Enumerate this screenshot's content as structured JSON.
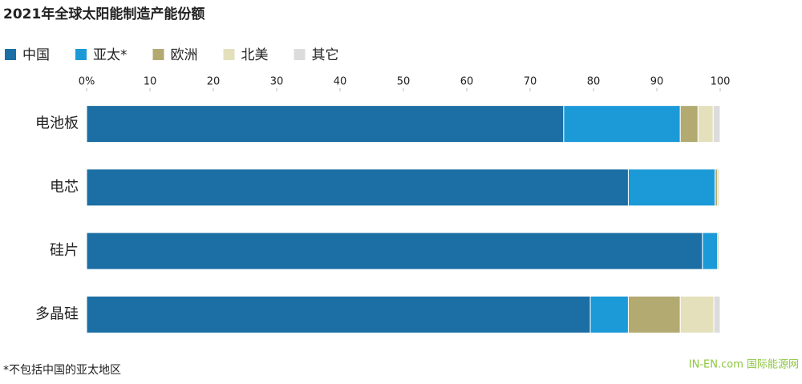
{
  "chart_data": {
    "type": "stacked-barh",
    "title": "2021年全球太阳能制造产能份额",
    "categories": [
      "电池板",
      "电芯",
      "硅片",
      "多晶硅"
    ],
    "series": [
      {
        "name": "中国",
        "color": "#1b6fa4",
        "values": [
          75.3,
          85.5,
          97.2,
          79.5
        ]
      },
      {
        "name": "亚太*",
        "color": "#1c9ad8",
        "values": [
          18.4,
          13.7,
          2.4,
          6.0
        ]
      },
      {
        "name": "欧洲",
        "color": "#b3aa72",
        "values": [
          2.8,
          0.4,
          0.2,
          8.2
        ]
      },
      {
        "name": "北美",
        "color": "#e4e0bc",
        "values": [
          2.4,
          0.3,
          0.1,
          5.3
        ]
      },
      {
        "name": "其它",
        "color": "#dcdcdc",
        "values": [
          1.1,
          0.1,
          0.1,
          1.0
        ]
      }
    ],
    "xlim": [
      0,
      100
    ],
    "xticks": [
      {
        "value": 0,
        "label": "0%"
      },
      10,
      20,
      30,
      40,
      50,
      60,
      70,
      80,
      90,
      100
    ],
    "footnote": "*不包括中国的亚太地区",
    "watermark": "IN-EN.com 国际能源网"
  }
}
